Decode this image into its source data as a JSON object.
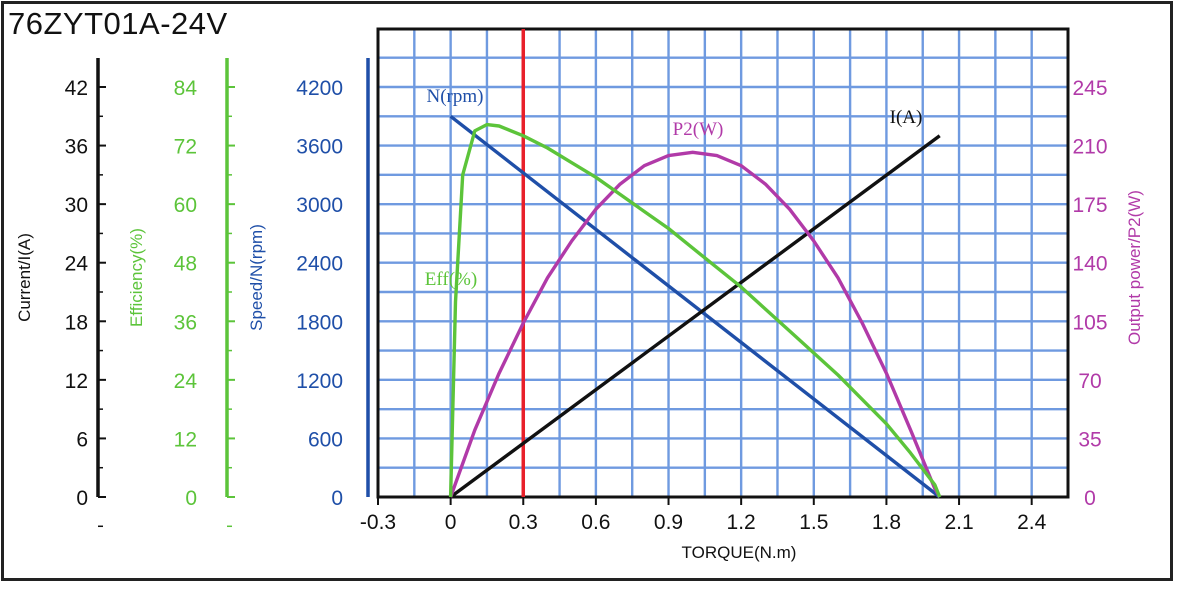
{
  "model_title": "76ZYT01A-24V",
  "chart_data": {
    "type": "line",
    "xlabel": "TORQUE(N.m)",
    "xlim": [
      -0.3,
      2.55
    ],
    "x_ticks": [
      "-0.3",
      "0",
      "0.3",
      "0.6",
      "0.9",
      "1.2",
      "1.5",
      "1.8",
      "2.1",
      "2.4"
    ],
    "x_tick_values": [
      -0.3,
      0,
      0.3,
      0.6,
      0.9,
      1.2,
      1.5,
      1.8,
      2.1,
      2.4
    ],
    "marker_line": {
      "x": 0.3,
      "color": "#e8202a"
    },
    "grid": true,
    "axes": {
      "current": {
        "label": "Current/I(A)",
        "min": 0,
        "max": 42,
        "ticks": [
          "0",
          "6",
          "12",
          "18",
          "24",
          "30",
          "36",
          "42"
        ],
        "color": "#111111"
      },
      "efficiency": {
        "label": "Efficiency(%)",
        "min": 0,
        "max": 84,
        "ticks": [
          "0",
          "12",
          "24",
          "36",
          "48",
          "60",
          "72",
          "84"
        ],
        "color": "#5cc43a"
      },
      "speed": {
        "label": "Speed/N(rpm)",
        "min": 0,
        "max": 4200,
        "ticks": [
          "0",
          "600",
          "1200",
          "1800",
          "2400",
          "3000",
          "3600",
          "4200"
        ],
        "color": "#1f4fa8"
      },
      "power": {
        "label": "Output power/P2(W)",
        "min": 0,
        "max": 245,
        "ticks": [
          "0",
          "35",
          "70",
          "105",
          "140",
          "175",
          "210",
          "245"
        ],
        "color": "#b13aa8"
      }
    },
    "series": [
      {
        "name": "N(rpm)",
        "axis": "speed",
        "color": "#1f4fa8",
        "x": [
          0,
          2.02
        ],
        "y": [
          3900,
          0
        ]
      },
      {
        "name": "I(A)",
        "axis": "current",
        "color": "#111111",
        "x": [
          0,
          2.02
        ],
        "y": [
          0,
          37
        ]
      },
      {
        "name": "P2(W)",
        "axis": "power",
        "color": "#b13aa8",
        "x": [
          0,
          0.1,
          0.2,
          0.3,
          0.4,
          0.5,
          0.6,
          0.7,
          0.8,
          0.9,
          1.0,
          1.1,
          1.2,
          1.3,
          1.4,
          1.5,
          1.6,
          1.7,
          1.8,
          1.9,
          2.0,
          2.02
        ],
        "y": [
          0,
          40,
          74,
          104,
          131,
          153,
          172,
          187,
          198,
          204,
          206,
          204,
          198,
          187,
          172,
          153,
          131,
          104,
          74,
          40,
          5,
          0
        ]
      },
      {
        "name": "Eff(%)",
        "axis": "efficiency",
        "color": "#5cc43a",
        "x": [
          0,
          0.02,
          0.05,
          0.1,
          0.15,
          0.2,
          0.3,
          0.4,
          0.5,
          0.6,
          0.7,
          0.8,
          0.9,
          1.0,
          1.1,
          1.2,
          1.3,
          1.4,
          1.5,
          1.6,
          1.7,
          1.8,
          1.9,
          2.0,
          2.02
        ],
        "y": [
          0,
          40,
          66,
          75,
          76.3,
          76,
          74,
          71.5,
          68.5,
          65.5,
          62,
          58.5,
          55,
          51,
          47,
          43,
          38.5,
          34,
          29.5,
          25,
          20,
          15,
          9,
          2.5,
          0
        ]
      }
    ]
  }
}
